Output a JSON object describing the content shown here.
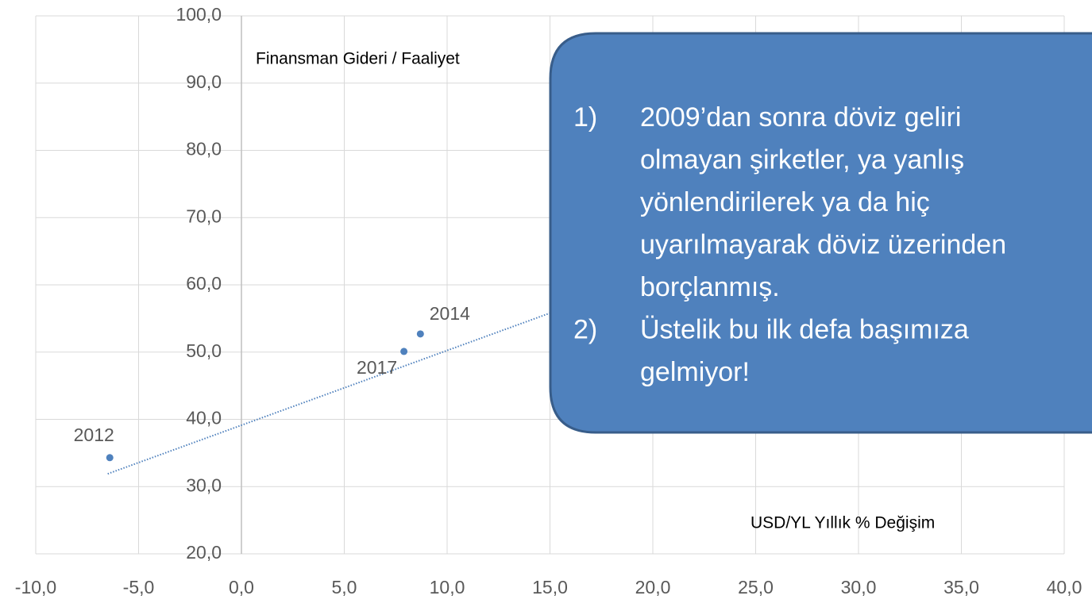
{
  "chart_data": {
    "type": "scatter",
    "y_label": "Finansman Gideri / Faaliyet",
    "x_label": "USD/YL Yıllık % Değişim",
    "x": [
      -6.4,
      8.7,
      7.9
    ],
    "values": [
      34.3,
      52.7,
      50.1
    ],
    "point_labels": [
      "2012",
      "2014",
      "2017"
    ],
    "color": "#4f81bd",
    "trendline": {
      "x": [
        -6.5,
        15
      ],
      "values": [
        31.9,
        55.8
      ]
    },
    "xlim": [
      -10,
      40
    ],
    "ylim": [
      20,
      100
    ],
    "xticks": [
      {
        "value": -10,
        "label": "-10,0"
      },
      {
        "value": -5,
        "label": "-5,0"
      },
      {
        "value": 0,
        "label": "0,0"
      },
      {
        "value": 5,
        "label": "5,0"
      },
      {
        "value": 10,
        "label": "10,0"
      },
      {
        "value": 15,
        "label": "15,0"
      },
      {
        "value": 20,
        "label": "20,0"
      },
      {
        "value": 25,
        "label": "25,0"
      },
      {
        "value": 30,
        "label": "30,0"
      },
      {
        "value": 35,
        "label": "35,0"
      },
      {
        "value": 40,
        "label": "40,0"
      }
    ],
    "yticks": [
      {
        "value": 20,
        "label": "20,0"
      },
      {
        "value": 30,
        "label": "30,0"
      },
      {
        "value": 40,
        "label": "40,0"
      },
      {
        "value": 50,
        "label": "50,0"
      },
      {
        "value": 60,
        "label": "60,0"
      },
      {
        "value": 70,
        "label": "70,0"
      },
      {
        "value": 80,
        "label": "80,0"
      },
      {
        "value": 90,
        "label": "90,0"
      },
      {
        "value": 100,
        "label": "100,0"
      }
    ],
    "grid": true
  },
  "callout": {
    "items": [
      {
        "number": "1)",
        "lines": [
          "2009’dan sonra döviz geliri",
          "olmayan şirketler, ya yanlış",
          "yönlendirilerek ya da hiç",
          "uyarılmayarak döviz üzerinden",
          "borçlanmış."
        ]
      },
      {
        "number": "2)",
        "lines": [
          "Üstelik bu ilk defa başımıza",
          "gelmiyor!"
        ]
      }
    ]
  }
}
